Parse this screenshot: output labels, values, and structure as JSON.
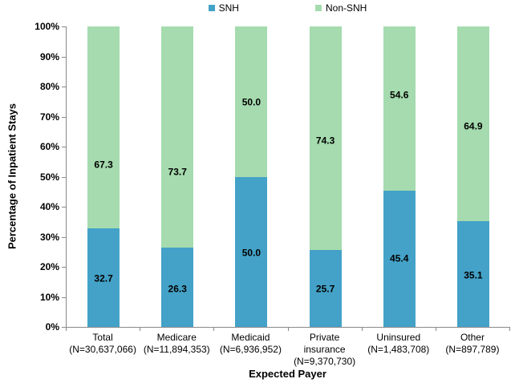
{
  "chart_data": {
    "type": "bar",
    "stacked": true,
    "title": "",
    "xlabel": "Expected Payer",
    "ylabel": "Percentage of Inpatient Stays",
    "grid": false,
    "axis_color": "#898989",
    "y_axis": {
      "min": 0,
      "max": 100,
      "step": 10,
      "tick_suffix": "%"
    },
    "categories": [
      {
        "label": "Total",
        "n": "(N=30,637,066)"
      },
      {
        "label": "Medicare",
        "n": "(N=11,894,353)"
      },
      {
        "label": "Medicaid",
        "n": "(N=6,936,952)"
      },
      {
        "label": "Private insurance",
        "n": "(N=9,370,730)"
      },
      {
        "label": "Uninsured",
        "n": "(N=1,483,708)"
      },
      {
        "label": "Other",
        "n": "(N=897,789)"
      }
    ],
    "series": [
      {
        "name": "SNH",
        "color": "#44A2C8",
        "values": [
          32.7,
          26.3,
          50.0,
          25.7,
          45.4,
          35.1
        ],
        "labels": [
          "32.7",
          "26.3",
          "50.0",
          "25.7",
          "45.4",
          "35.1"
        ],
        "label_pos_pct": [
          16.0,
          12.5,
          24.5,
          12.6,
          22.6,
          17.2
        ]
      },
      {
        "name": "Non-SNH",
        "color": "#A5DBAE",
        "values": [
          67.3,
          73.7,
          50.0,
          74.3,
          54.6,
          64.9
        ],
        "labels": [
          "67.3",
          "73.7",
          "50.0",
          "74.3",
          "54.6",
          "64.9"
        ],
        "label_pos_pct": [
          53.9,
          51.5,
          74.6,
          61.9,
          77.0,
          66.6
        ]
      }
    ],
    "legend": {
      "position": "top",
      "items": [
        {
          "label": "SNH",
          "color": "#44A2C8"
        },
        {
          "label": "Non-SNH",
          "color": "#A5DBAE"
        }
      ]
    }
  }
}
